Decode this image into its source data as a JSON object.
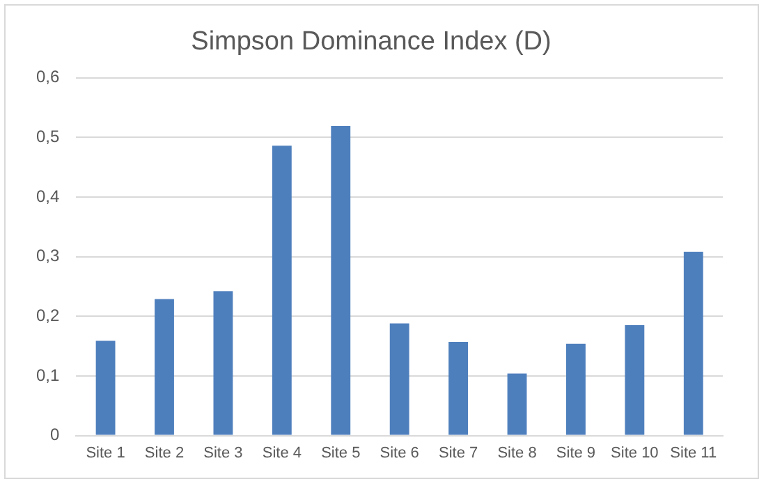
{
  "chart_data": {
    "type": "bar",
    "title": "Simpson Dominance Index (D)",
    "categories": [
      "Site 1",
      "Site 2",
      "Site 3",
      "Site 4",
      "Site 5",
      "Site 6",
      "Site 7",
      "Site 8",
      "Site 9",
      "Site 10",
      "Site 11"
    ],
    "values": [
      0.159,
      0.229,
      0.242,
      0.486,
      0.519,
      0.188,
      0.157,
      0.104,
      0.154,
      0.185,
      0.308
    ],
    "color": "#4e7fbd",
    "ylim": [
      0,
      0.6
    ],
    "yticks": [
      0,
      {
        "value": 0.1,
        "label": "0,1"
      },
      {
        "value": 0.2,
        "label": "0,2"
      },
      {
        "value": 0.3,
        "label": "0,3"
      },
      {
        "value": 0.4,
        "label": "0,4"
      },
      {
        "value": 0.5,
        "label": "0,5"
      },
      {
        "value": 0.6,
        "label": "0,6"
      }
    ],
    "grid": "y",
    "legend": false
  }
}
